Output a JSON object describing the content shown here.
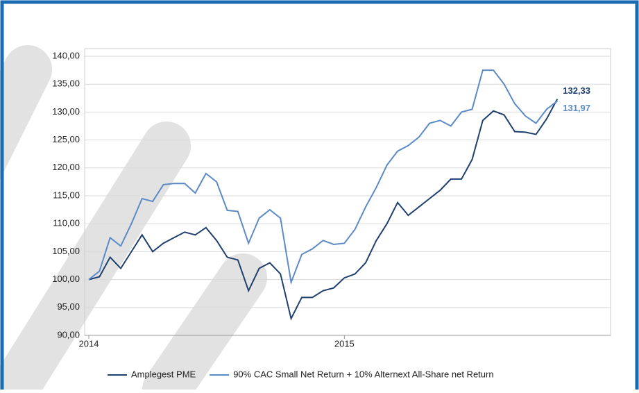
{
  "chart_data": {
    "type": "line",
    "categories": [
      "2014",
      null,
      null,
      null,
      null,
      null,
      null,
      null,
      null,
      null,
      null,
      null,
      null,
      null,
      null,
      null,
      null,
      null,
      null,
      null,
      null,
      null,
      null,
      null,
      "2015",
      null,
      null,
      null,
      null,
      null,
      null,
      null,
      null,
      null,
      null,
      null,
      null,
      null,
      null,
      null,
      null,
      null,
      null,
      null,
      null,
      null,
      null,
      null,
      null,
      null
    ],
    "series": [
      {
        "name": "Amplegest PME",
        "color": "#1f3f6e",
        "values": [
          100,
          100.5,
          104,
          102,
          105,
          108,
          105,
          106.5,
          107.5,
          108.5,
          108,
          109.3,
          107,
          104,
          103.5,
          98,
          102,
          103,
          101,
          93,
          96.8,
          96.8,
          98,
          98.5,
          100.3,
          101,
          103,
          107,
          110,
          113.8,
          111.5,
          113,
          114.5,
          116,
          118,
          118,
          121.5,
          128.5,
          130.2,
          129.5,
          126.5,
          126.4,
          126,
          128.8,
          132.33,
          null,
          null,
          null,
          null,
          null
        ],
        "value_labels": [
          null,
          null,
          null,
          null,
          null,
          null,
          null,
          null,
          null,
          null,
          null,
          null,
          null,
          null,
          null,
          null,
          null,
          null,
          null,
          null,
          null,
          null,
          null,
          null,
          null,
          null,
          null,
          null,
          null,
          null,
          null,
          null,
          null,
          null,
          null,
          null,
          null,
          null,
          null,
          null,
          null,
          null,
          null,
          null,
          "132,33",
          null,
          null,
          null,
          null,
          null
        ]
      },
      {
        "name": "90% CAC Small Net Return + 10% Alternext All-Share net Return",
        "color": "#5b8ac6",
        "values": [
          100,
          101.5,
          107.5,
          106,
          110,
          114.5,
          114,
          117,
          117.2,
          117.2,
          115.5,
          119,
          117.5,
          112.4,
          112.2,
          106.5,
          111,
          112.5,
          111,
          99.5,
          104.5,
          105.5,
          107,
          106.3,
          106.5,
          109,
          113,
          116.5,
          120.5,
          123,
          124,
          125.5,
          128,
          128.5,
          127.5,
          130,
          130.5,
          137.5,
          137.5,
          135,
          131.5,
          129.3,
          128,
          130.5,
          131.97,
          null,
          null,
          null,
          null,
          null
        ],
        "value_labels": [
          null,
          null,
          null,
          null,
          null,
          null,
          null,
          null,
          null,
          null,
          null,
          null,
          null,
          null,
          null,
          null,
          null,
          null,
          null,
          null,
          null,
          null,
          null,
          null,
          null,
          null,
          null,
          null,
          null,
          null,
          null,
          null,
          null,
          null,
          null,
          null,
          null,
          null,
          null,
          null,
          null,
          null,
          null,
          null,
          "131,97",
          null,
          null,
          null,
          null,
          null
        ]
      }
    ],
    "ylim": [
      90,
      140
    ],
    "yticks": [
      {
        "value": 90,
        "label": "90,00"
      },
      {
        "value": 95,
        "label": "95,00"
      },
      {
        "value": 100,
        "label": "100,00"
      },
      {
        "value": 105,
        "label": "105,00"
      },
      {
        "value": 110,
        "label": "110,00"
      },
      {
        "value": 115,
        "label": "115,00"
      },
      {
        "value": 120,
        "label": "120,00"
      },
      {
        "value": 125,
        "label": "125,00"
      },
      {
        "value": 130,
        "label": "130,00"
      },
      {
        "value": 135,
        "label": "135,00"
      },
      {
        "value": 140,
        "label": "140,00"
      }
    ],
    "grid": true,
    "legend": "bottom"
  }
}
